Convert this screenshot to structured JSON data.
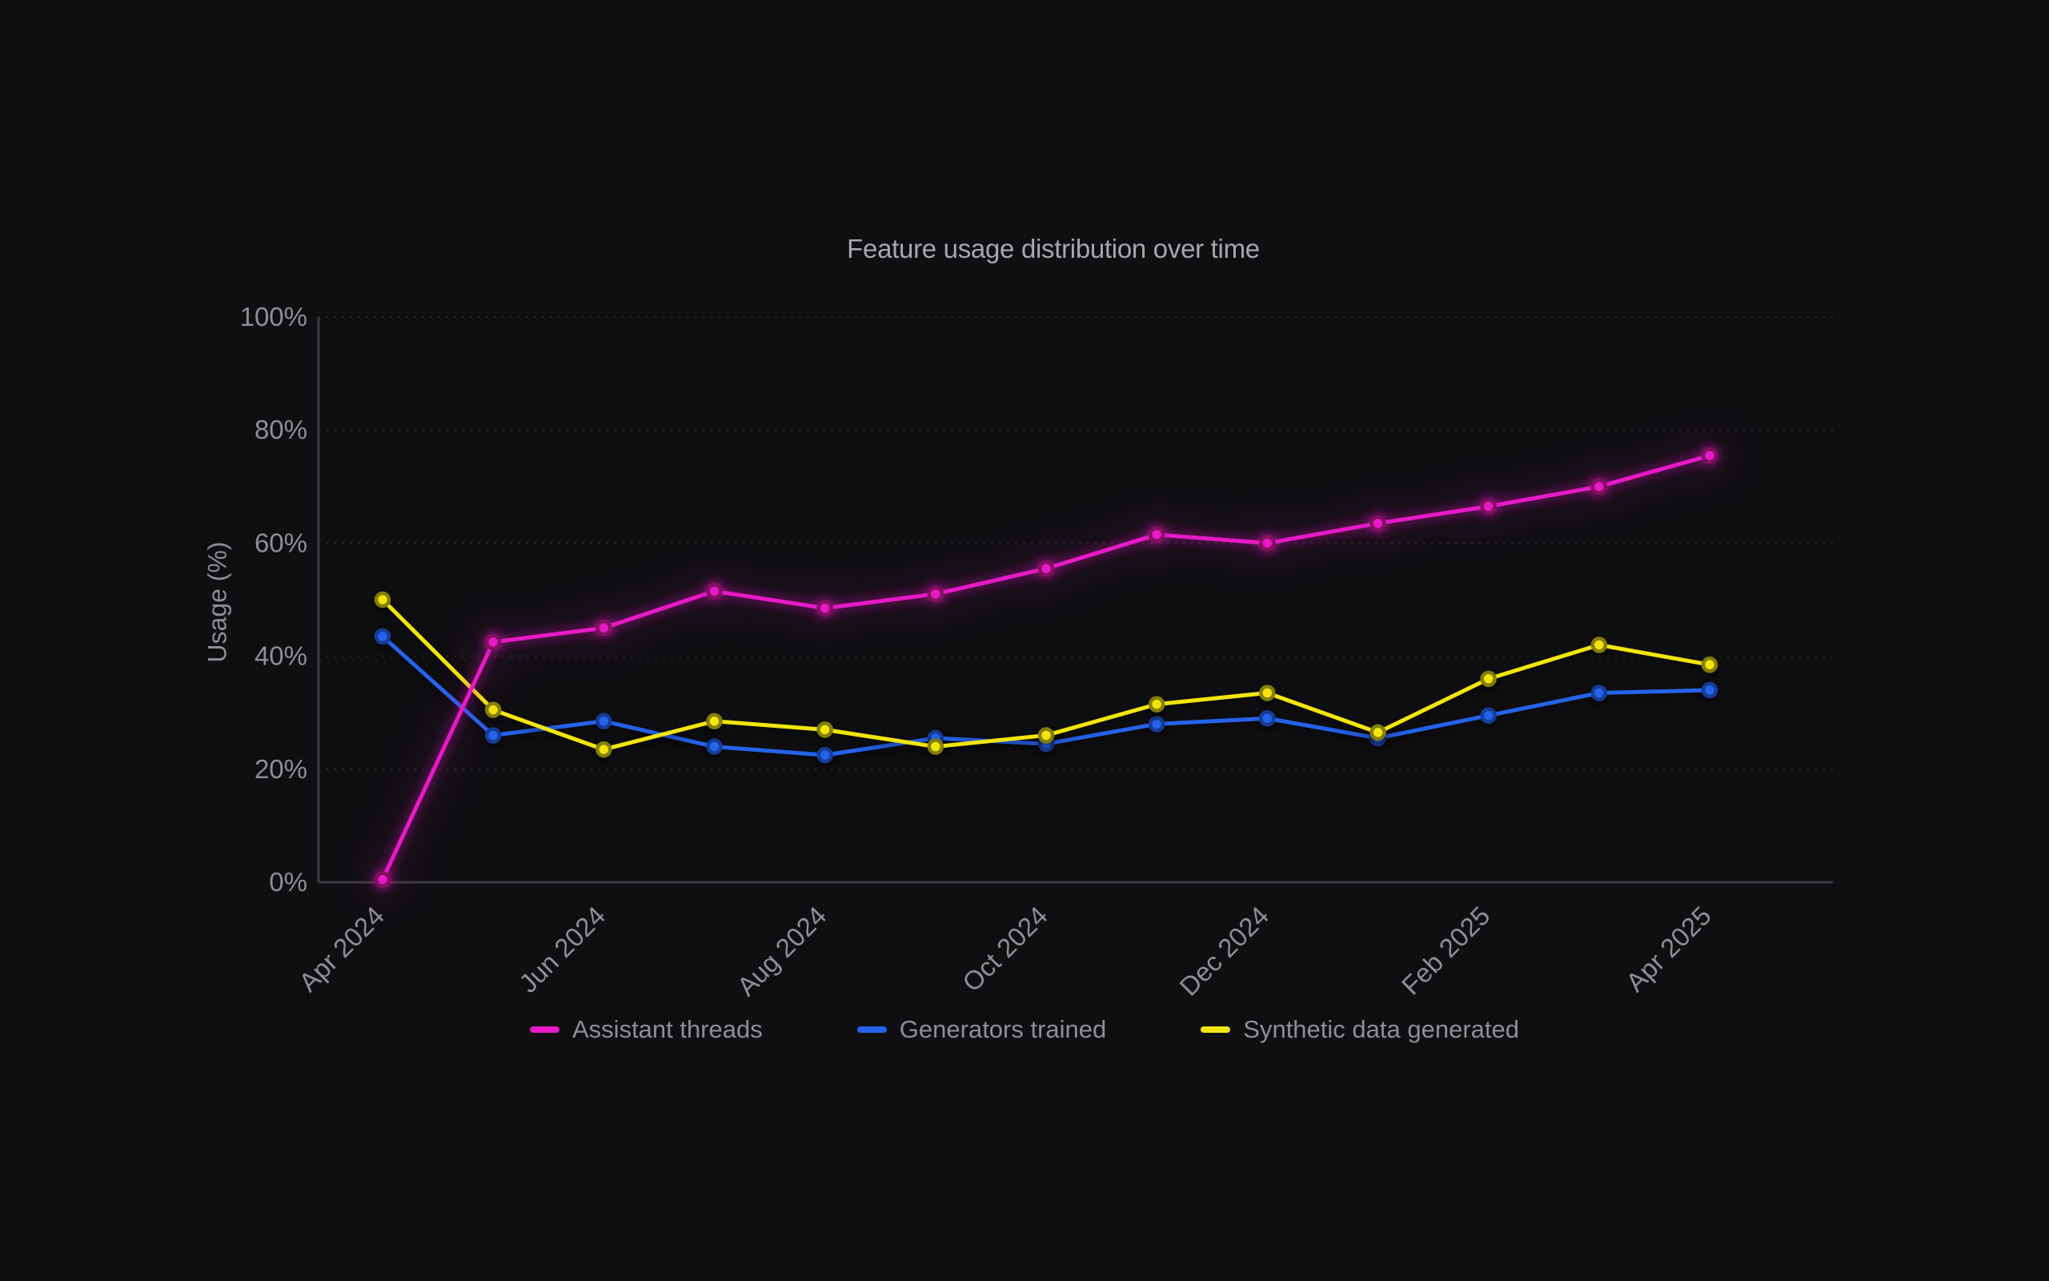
{
  "page": {
    "background_color": "#0f0f12",
    "text_muted_color": "#8e8e93",
    "title_color": "#a6a6ac",
    "grid_color": "#2b2b2e",
    "axis_color": "#3a3a3e"
  },
  "chart_data": {
    "type": "line",
    "title": "Feature usage distribution over time",
    "xlabel": "",
    "ylabel": "Usage (%)",
    "ylim": [
      0,
      100
    ],
    "grid": true,
    "legend_position": "bottom",
    "y_ticks": [
      "0%",
      "20%",
      "40%",
      "60%",
      "80%",
      "100%"
    ],
    "x_tick_labels": [
      "Apr 2024",
      "Jun 2024",
      "Aug 2024",
      "Oct 2024",
      "Dec 2024",
      "Feb 2025",
      "Apr 2025"
    ],
    "categories": [
      "Apr 2024",
      "May 2024",
      "Jun 2024",
      "Jul 2024",
      "Aug 2024",
      "Sep 2024",
      "Oct 2024",
      "Nov 2024",
      "Dec 2024",
      "Jan 2025",
      "Feb 2025",
      "Mar 2025",
      "Apr 2025"
    ],
    "series": [
      {
        "name": "Assistant threads",
        "color": "#e61ac6",
        "marker_ring_color": "#82105f",
        "values": [
          0.5,
          42.5,
          45,
          51.5,
          48.5,
          51,
          55.5,
          61.5,
          60,
          63.5,
          66.5,
          70,
          75.5
        ]
      },
      {
        "name": "Generators trained",
        "color": "#2563eb",
        "marker_ring_color": "#163d96",
        "values": [
          43.5,
          26,
          28.5,
          24,
          22.5,
          25.5,
          24.5,
          28,
          29,
          25.5,
          29.5,
          33.5,
          34
        ]
      },
      {
        "name": "Synthetic data generated",
        "color": "#f2e50e",
        "marker_ring_color": "#847e08",
        "values": [
          50,
          30.5,
          23.5,
          28.5,
          27,
          24,
          26,
          31.5,
          33.5,
          26.5,
          36,
          42,
          38.5
        ]
      }
    ]
  }
}
